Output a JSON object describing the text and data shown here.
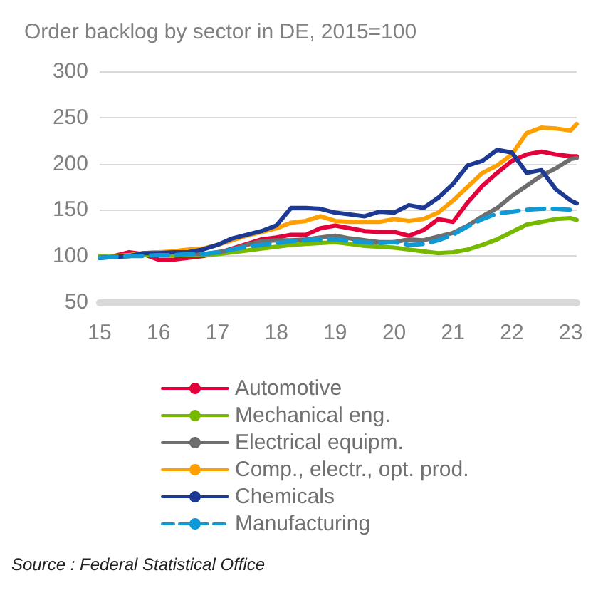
{
  "chart_data": {
    "type": "line",
    "title": "Order backlog by sector in DE, 2015=100",
    "x": [
      15,
      15.25,
      15.5,
      15.75,
      16,
      16.25,
      16.5,
      16.75,
      17,
      17.25,
      17.5,
      17.75,
      18,
      18.25,
      18.5,
      18.75,
      19,
      19.25,
      19.5,
      19.75,
      20,
      20.25,
      20.5,
      20.75,
      21,
      21.25,
      21.5,
      21.75,
      22,
      22.25,
      22.5,
      22.75,
      23,
      23.1
    ],
    "series": [
      {
        "name": "Automotive",
        "color": "#e4003a",
        "values": [
          98,
          100,
          104,
          102,
          96,
          96,
          98,
          100,
          103,
          108,
          113,
          118,
          120,
          123,
          123,
          130,
          133,
          130,
          127,
          126,
          126,
          122,
          128,
          140,
          137,
          158,
          176,
          190,
          203,
          210,
          213,
          210,
          208,
          208
        ]
      },
      {
        "name": "Mechanical eng.",
        "color": "#76b900",
        "values": [
          100,
          100,
          100,
          101,
          101,
          101,
          101,
          101,
          102,
          104,
          106,
          108,
          110,
          112,
          113,
          114,
          115,
          113,
          111,
          110,
          109,
          107,
          105,
          103,
          104,
          107,
          112,
          118,
          126,
          134,
          137,
          140,
          141,
          139
        ]
      },
      {
        "name": "Electrical equipm.",
        "color": "#6e6e6e",
        "values": [
          98,
          100,
          101,
          103,
          104,
          104,
          103,
          102,
          104,
          107,
          112,
          116,
          117,
          117,
          118,
          120,
          122,
          119,
          117,
          115,
          115,
          118,
          117,
          121,
          125,
          133,
          143,
          152,
          165,
          176,
          187,
          195,
          205,
          206
        ]
      },
      {
        "name": "Comp., electr., opt. prod.",
        "color": "#ffa000",
        "values": [
          98,
          100,
          101,
          103,
          104,
          105,
          107,
          108,
          112,
          117,
          122,
          126,
          130,
          136,
          138,
          143,
          138,
          137,
          137,
          137,
          140,
          138,
          140,
          147,
          160,
          175,
          190,
          198,
          210,
          233,
          239,
          238,
          236,
          243
        ]
      },
      {
        "name": "Chemicals",
        "color": "#1c3a94",
        "values": [
          98,
          99,
          100,
          103,
          103,
          104,
          104,
          107,
          112,
          119,
          123,
          127,
          133,
          152,
          152,
          151,
          147,
          145,
          143,
          148,
          147,
          155,
          152,
          163,
          178,
          198,
          203,
          215,
          212,
          190,
          193,
          172,
          160,
          157
        ]
      },
      {
        "name": "Manufacturing",
        "color": "#0f9ad6",
        "line_style": "dashed",
        "values": [
          98,
          99,
          100,
          100,
          101,
          101,
          102,
          102,
          104,
          107,
          110,
          112,
          114,
          116,
          117,
          118,
          118,
          116,
          115,
          114,
          115,
          112,
          113,
          117,
          123,
          132,
          140,
          146,
          148,
          150,
          151,
          151,
          150,
          149
        ]
      }
    ],
    "xlim": [
      15,
      23.1
    ],
    "xticks": [
      15,
      16,
      17,
      18,
      19,
      20,
      21,
      22,
      23
    ],
    "ylim": [
      50,
      300
    ],
    "yticks": [
      50,
      100,
      150,
      200,
      250,
      300
    ],
    "grid": "y",
    "legend": "bottom",
    "marker": "none",
    "annotations": [
      "Source : Federal Statistical Office"
    ]
  }
}
